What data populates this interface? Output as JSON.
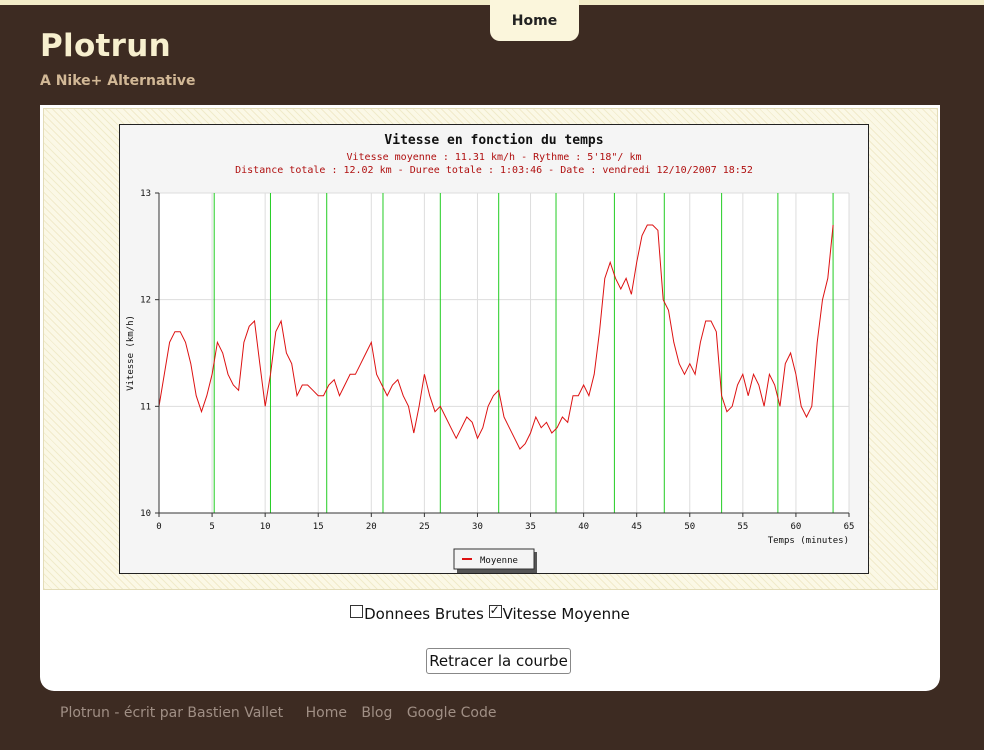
{
  "nav": {
    "home_label": "Home"
  },
  "site": {
    "title": "Plotrun",
    "tagline": "A Nike+ Alternative"
  },
  "chart_data": {
    "type": "line",
    "title": "Vitesse en fonction du temps",
    "subtitle1": "Vitesse moyenne : 11.31 km/h - Rythme : 5'18\"/ km",
    "subtitle2": "Distance totale : 12.02 km - Duree totale : 1:03:46 - Date : vendredi 12/10/2007 18:52",
    "xlabel": "Temps (minutes)",
    "ylabel": "Vitesse (km/h)",
    "xlim": [
      0,
      65
    ],
    "ylim": [
      10,
      13
    ],
    "xticks": [
      0,
      5,
      10,
      15,
      20,
      25,
      30,
      35,
      40,
      45,
      50,
      55,
      60,
      65
    ],
    "yticks": [
      10,
      11,
      12,
      13
    ],
    "grid": true,
    "legend": "bottom-center",
    "km_markers": [
      5.2,
      10.5,
      15.8,
      21.1,
      26.5,
      32.0,
      37.4,
      42.9,
      47.6,
      53.0,
      58.3,
      63.5
    ],
    "series": [
      {
        "name": "Moyenne",
        "color": "#dd1111",
        "x": [
          0,
          0.5,
          1,
          1.5,
          2,
          2.5,
          3,
          3.5,
          4,
          4.5,
          5,
          5.5,
          6,
          6.5,
          7,
          7.5,
          8,
          8.5,
          9,
          9.5,
          10,
          10.5,
          11,
          11.5,
          12,
          12.5,
          13,
          13.5,
          14,
          14.5,
          15,
          15.5,
          16,
          16.5,
          17,
          17.5,
          18,
          18.5,
          19,
          19.5,
          20,
          20.5,
          21,
          21.5,
          22,
          22.5,
          23,
          23.5,
          24,
          24.5,
          25,
          25.5,
          26,
          26.5,
          27,
          27.5,
          28,
          28.5,
          29,
          29.5,
          30,
          30.5,
          31,
          31.5,
          32,
          32.5,
          33,
          33.5,
          34,
          34.5,
          35,
          35.5,
          36,
          36.5,
          37,
          37.5,
          38,
          38.5,
          39,
          39.5,
          40,
          40.5,
          41,
          41.5,
          42,
          42.5,
          43,
          43.5,
          44,
          44.5,
          45,
          45.5,
          46,
          46.5,
          47,
          47.5,
          48,
          48.5,
          49,
          49.5,
          50,
          50.5,
          51,
          51.5,
          52,
          52.5,
          53,
          53.5,
          54,
          54.5,
          55,
          55.5,
          56,
          56.5,
          57,
          57.5,
          58,
          58.5,
          59,
          59.5,
          60,
          60.5,
          61,
          61.5,
          62,
          62.5,
          63,
          63.5
        ],
        "values": [
          11.0,
          11.3,
          11.6,
          11.7,
          11.7,
          11.6,
          11.4,
          11.1,
          10.95,
          11.1,
          11.3,
          11.6,
          11.5,
          11.3,
          11.2,
          11.15,
          11.6,
          11.75,
          11.8,
          11.4,
          11.0,
          11.3,
          11.7,
          11.8,
          11.5,
          11.4,
          11.1,
          11.2,
          11.2,
          11.15,
          11.1,
          11.1,
          11.2,
          11.25,
          11.1,
          11.2,
          11.3,
          11.3,
          11.4,
          11.5,
          11.6,
          11.3,
          11.2,
          11.1,
          11.2,
          11.25,
          11.1,
          11.0,
          10.75,
          11.0,
          11.3,
          11.1,
          10.95,
          11.0,
          10.9,
          10.8,
          10.7,
          10.8,
          10.9,
          10.85,
          10.7,
          10.8,
          11.0,
          11.1,
          11.15,
          10.9,
          10.8,
          10.7,
          10.6,
          10.65,
          10.75,
          10.9,
          10.8,
          10.85,
          10.75,
          10.8,
          10.9,
          10.85,
          11.1,
          11.1,
          11.2,
          11.1,
          11.3,
          11.7,
          12.2,
          12.35,
          12.2,
          12.1,
          12.2,
          12.05,
          12.35,
          12.6,
          12.7,
          12.7,
          12.65,
          12.0,
          11.9,
          11.6,
          11.4,
          11.3,
          11.4,
          11.3,
          11.6,
          11.8,
          11.8,
          11.7,
          11.1,
          10.95,
          11.0,
          11.2,
          11.3,
          11.1,
          11.3,
          11.2,
          11.0,
          11.3,
          11.2,
          11.0,
          11.4,
          11.5,
          11.3,
          11.0,
          10.9,
          11.0,
          11.6,
          12.0,
          12.2,
          12.7
        ]
      }
    ]
  },
  "options": {
    "raw_label": "Donnees Brutes",
    "avg_label": "Vitesse Moyenne",
    "raw_checked": false,
    "avg_checked": true
  },
  "actions": {
    "redraw_label": "Retracer la courbe"
  },
  "footer": {
    "credit": "Plotrun - écrit par Bastien Vallet",
    "links": [
      "Home",
      "Blog",
      "Google Code"
    ]
  }
}
